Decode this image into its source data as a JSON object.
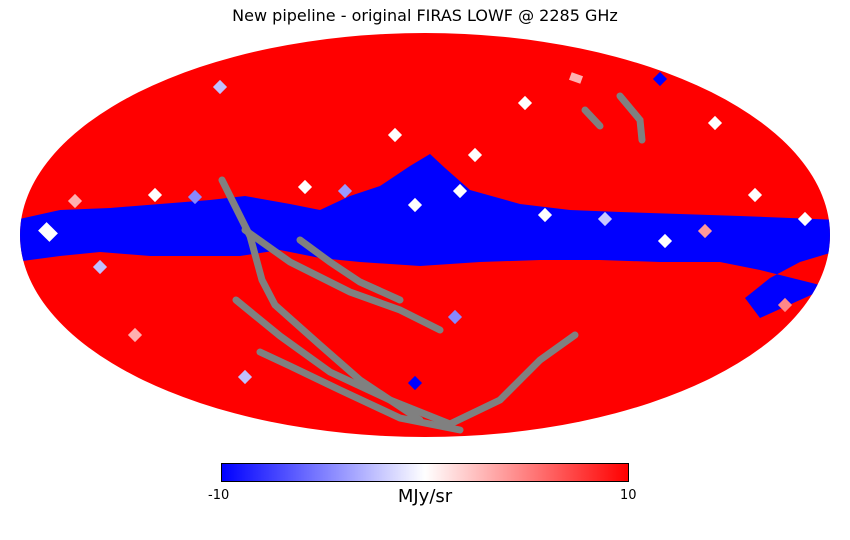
{
  "title": "New pipeline - original FIRAS LOWF @ 2285 GHz",
  "map": {
    "projection": "mollweide",
    "missing_color": "#808080",
    "palette": [
      "#0000ff",
      "#ffffff",
      "#ff0000"
    ]
  },
  "colorbar": {
    "min_label": "-10",
    "max_label": "10",
    "unit_label": "MJy/sr",
    "range": [
      -10,
      10
    ],
    "cmap": [
      "#0000ff",
      "#ffffff",
      "#ff0000"
    ]
  }
}
